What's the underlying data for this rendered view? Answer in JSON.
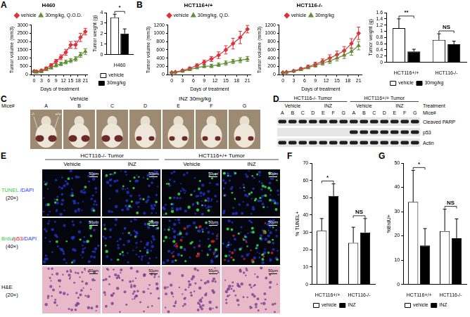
{
  "panel_labels": [
    "A",
    "B",
    "C",
    "D",
    "E",
    "F",
    "G"
  ],
  "chart_data": [
    {
      "type": "line",
      "title": "H460",
      "x_label": "Days of treatment",
      "y_label": "Tumor volume (mm3)",
      "x": [
        0,
        1,
        3,
        5,
        7,
        9,
        11,
        13,
        15,
        17,
        19,
        21
      ],
      "xlim": [
        -1,
        22
      ],
      "xticks": [
        0,
        3,
        6,
        9,
        12,
        15,
        18,
        21
      ],
      "ylim": [
        0,
        3000
      ],
      "yticks": [
        0,
        500,
        1000,
        1500,
        2000,
        2500,
        3000
      ],
      "grid": false,
      "legend": "top",
      "series": [
        {
          "name": "vehicle",
          "color": "#e0303a",
          "marker": "diamond",
          "values": [
            200,
            190,
            250,
            380,
            560,
            800,
            1050,
            1350,
            1800,
            1800,
            2250,
            2600
          ],
          "errors": [
            60,
            50,
            60,
            80,
            100,
            120,
            150,
            180,
            200,
            220,
            250,
            200
          ]
        },
        {
          "name": "30mg/kg, Q.O.D.",
          "color": "#5f8f35",
          "marker": "triangle",
          "values": [
            200,
            150,
            180,
            300,
            420,
            560,
            650,
            760,
            850,
            950,
            1200,
            1400
          ],
          "errors": [
            50,
            40,
            50,
            60,
            80,
            90,
            100,
            110,
            120,
            130,
            150,
            170
          ]
        }
      ]
    },
    {
      "type": "bar",
      "y_label": "Tumor weight (g)",
      "categories": [
        "H460"
      ],
      "ylim": [
        0,
        4
      ],
      "yticks": [
        0,
        1,
        2,
        3,
        4
      ],
      "grid": false,
      "legend": "bottom",
      "series": [
        {
          "name": "vehicle",
          "color": "#ffffff",
          "values": [
            3.55
          ],
          "errors": [
            0.3
          ]
        },
        {
          "name": "30mg/kg",
          "color": "#000000",
          "values": [
            2.0
          ],
          "errors": [
            0.45
          ]
        }
      ],
      "annotations": [
        {
          "category": "H460",
          "text": "*"
        }
      ]
    },
    {
      "type": "line",
      "title": "HCT116+/+",
      "x_label": "Days of treatment",
      "y_label": "Tumor volume (mm3)",
      "x": [
        0,
        1,
        3,
        5,
        7,
        9,
        11,
        13,
        15,
        17,
        19,
        21
      ],
      "xlim": [
        -1,
        22
      ],
      "xticks": [
        0,
        3,
        6,
        9,
        12,
        15,
        18,
        21
      ],
      "ylim": [
        0,
        1200
      ],
      "yticks": [
        0,
        200,
        400,
        600,
        800,
        1000,
        1200
      ],
      "grid": false,
      "legend": "top",
      "series": [
        {
          "name": "vehicle",
          "color": "#e0303a",
          "marker": "diamond",
          "values": [
            50,
            60,
            100,
            150,
            220,
            300,
            380,
            470,
            600,
            750,
            900,
            1100
          ],
          "errors": [
            10,
            15,
            20,
            30,
            40,
            50,
            60,
            80,
            100,
            130,
            150,
            90
          ]
        },
        {
          "name": "30mg/kg, Q.D.",
          "color": "#5f8f35",
          "marker": "triangle",
          "values": [
            50,
            60,
            80,
            120,
            170,
            200,
            210,
            240,
            280,
            320,
            350,
            380
          ],
          "errors": [
            10,
            10,
            15,
            20,
            30,
            30,
            40,
            40,
            50,
            50,
            60,
            60
          ]
        }
      ]
    },
    {
      "type": "line",
      "title": "HCT116-/-",
      "x_label": "Days of treatment",
      "y_label": "Tumor volume (mm3)",
      "x": [
        0,
        1,
        3,
        5,
        7,
        9,
        11,
        13,
        15,
        17,
        19,
        21
      ],
      "xlim": [
        -1,
        22
      ],
      "xticks": [
        0,
        3,
        6,
        9,
        12,
        15,
        18,
        21
      ],
      "ylim": [
        0,
        1200
      ],
      "yticks": [
        0,
        200,
        400,
        600,
        800,
        1000,
        1200
      ],
      "grid": false,
      "legend": "top",
      "series": [
        {
          "name": "vehicle",
          "color": "#e0303a",
          "marker": "diamond",
          "values": [
            50,
            60,
            90,
            140,
            190,
            250,
            320,
            400,
            480,
            580,
            750,
            1000
          ],
          "errors": [
            10,
            10,
            20,
            30,
            40,
            50,
            60,
            80,
            90,
            100,
            120,
            150
          ]
        },
        {
          "name": "30mg/kg",
          "color": "#5f8f35",
          "marker": "triangle",
          "values": [
            50,
            55,
            80,
            120,
            170,
            220,
            280,
            330,
            400,
            470,
            560,
            700
          ],
          "errors": [
            10,
            10,
            15,
            20,
            30,
            40,
            50,
            60,
            70,
            80,
            90,
            100
          ]
        }
      ]
    },
    {
      "type": "bar",
      "y_label": "Tumor weight (g)",
      "categories": [
        "HCT116+/+",
        "HCT116-/-"
      ],
      "ylim": [
        0,
        1.6
      ],
      "yticks": [
        0,
        0.2,
        0.4,
        0.6,
        0.8,
        1,
        1.2,
        1.4,
        1.6
      ],
      "grid": false,
      "legend": "bottom",
      "series": [
        {
          "name": "vehicle",
          "color": "#ffffff",
          "values": [
            1.1,
            0.72
          ],
          "errors": [
            0.3,
            0.2
          ]
        },
        {
          "name": "30mg/kg",
          "color": "#000000",
          "values": [
            0.35,
            0.58
          ],
          "errors": [
            0.07,
            0.1
          ]
        }
      ],
      "annotations": [
        {
          "category": "HCT116+/+",
          "text": "**"
        },
        {
          "category": "HCT116-/-",
          "text": "NS"
        }
      ]
    },
    {
      "type": "bar",
      "y_label": "% TUNEL+",
      "categories": [
        "HCT116+/+",
        "HCT116-/-"
      ],
      "ylim": [
        0,
        70
      ],
      "yticks": [
        0,
        10,
        20,
        30,
        40,
        50,
        60,
        70
      ],
      "grid": false,
      "legend": "bottom",
      "series": [
        {
          "name": "vehicle",
          "color": "#ffffff",
          "values": [
            31,
            24
          ],
          "errors": [
            7,
            9
          ]
        },
        {
          "name": "INZ",
          "color": "#000000",
          "values": [
            51,
            30
          ],
          "errors": [
            7,
            8
          ]
        }
      ],
      "annotations": [
        {
          "category": "HCT116+/+",
          "text": "*"
        },
        {
          "category": "HCT116-/-",
          "text": "NS"
        }
      ]
    },
    {
      "type": "bar",
      "y_label": "%BrdU+",
      "categories": [
        "HCT116+/+",
        "HCT116-/-"
      ],
      "ylim": [
        0,
        50
      ],
      "yticks": [
        0,
        10,
        20,
        30,
        40,
        50
      ],
      "grid": false,
      "legend": "bottom",
      "series": [
        {
          "name": "vehicle",
          "color": "#ffffff",
          "values": [
            34,
            22
          ],
          "errors": [
            13,
            9
          ]
        },
        {
          "name": "INZ",
          "color": "#000000",
          "values": [
            16,
            19
          ],
          "errors": [
            7,
            8
          ]
        }
      ],
      "annotations": [
        {
          "category": "HCT116+/+",
          "text": "*"
        },
        {
          "category": "HCT116-/-",
          "text": "NS"
        }
      ]
    }
  ],
  "mice_photo": {
    "row_label": "Mice#",
    "groups": [
      {
        "label": "Vehicle",
        "mice": [
          "A",
          "B",
          "C"
        ]
      },
      {
        "label": "INZ 30mg/kg",
        "mice": [
          "D",
          "E",
          "F",
          "G"
        ]
      }
    ],
    "tumor_labels": [
      "-/-",
      "+/+"
    ]
  },
  "western_blot": {
    "treatment_label": "Treatment",
    "lane_label": "Mice#",
    "groups": [
      {
        "label": "HCT116-/- Tumor",
        "treatments": [
          {
            "label": "Vehicle",
            "lanes": [
              "A",
              "B",
              "C"
            ]
          },
          {
            "label": "INZ",
            "lanes": [
              "D",
              "E",
              "F",
              "G"
            ]
          }
        ]
      },
      {
        "label": "HCT116+/+ Tumor",
        "treatments": [
          {
            "label": "Vehicle",
            "lanes": [
              "A",
              "B",
              "C"
            ]
          },
          {
            "label": "INZ",
            "lanes": [
              "D",
              "E",
              "F",
              "G"
            ]
          }
        ]
      }
    ],
    "rows": [
      {
        "label": "Cleaved PARP",
        "bands": [
          true,
          true,
          true,
          true,
          true,
          true,
          true,
          true,
          true,
          true,
          true,
          true,
          true,
          true
        ]
      },
      {
        "label": "p53",
        "bands": [
          false,
          false,
          false,
          false,
          false,
          false,
          false,
          true,
          true,
          true,
          true,
          true,
          true,
          true
        ]
      },
      {
        "label": "Actin",
        "bands": [
          true,
          true,
          true,
          true,
          true,
          true,
          true,
          true,
          true,
          true,
          true,
          true,
          true,
          true
        ]
      }
    ]
  },
  "microscopy": {
    "scale_bar": "50μm",
    "groups": [
      {
        "label": "HCT116-/- Tumor",
        "columns": [
          "Vehicle",
          "INZ"
        ]
      },
      {
        "label": "HCT116+/+ Tumor",
        "columns": [
          "Vehicle",
          "INZ"
        ]
      }
    ],
    "rows": [
      {
        "label": [
          {
            "text": "TUNEL",
            "color": "#2ecc40"
          },
          {
            "text": " /DAPI",
            "color": "#1f3cff"
          }
        ],
        "magnification": "(20×)"
      },
      {
        "label": [
          {
            "text": "Brdu",
            "color": "#2ecc40"
          },
          {
            "text": "/",
            "color": "#000000"
          },
          {
            "text": "p53",
            "color": "#e0201b"
          },
          {
            "text": "/DAPI",
            "color": "#1f3cff"
          }
        ],
        "magnification": "(40×)"
      },
      {
        "label": [
          {
            "text": "H&E",
            "color": "#000000"
          }
        ],
        "magnification": "(20×)"
      }
    ]
  }
}
